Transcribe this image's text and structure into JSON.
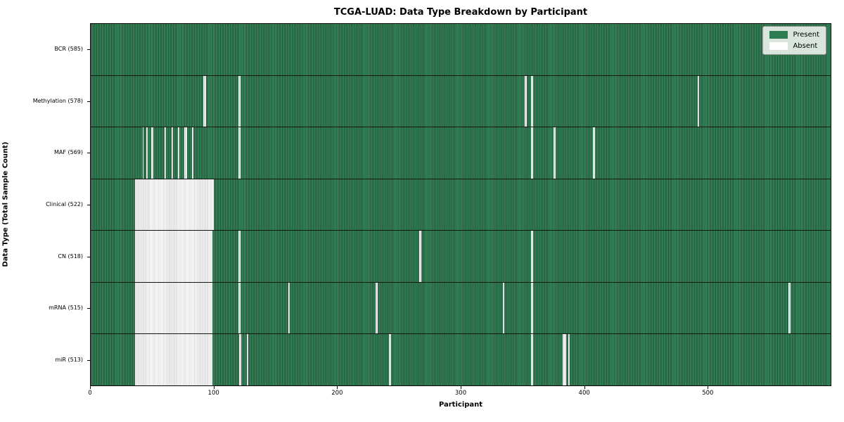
{
  "title": "TCGA-LUAD: Data Type Breakdown by Participant",
  "colors": {
    "present": "#2e7d52",
    "present_light": "#38855c",
    "present_dark": "#205536",
    "absent": "#ffffff",
    "absent_stripe": "#c9c9c9",
    "legend_bg": "#ecf1ec"
  },
  "legend": {
    "present_label": "Present",
    "absent_label": "Absent"
  },
  "chart_data": {
    "type": "heatmap",
    "title": "TCGA-LUAD: Data Type Breakdown by Participant",
    "xlabel": "Participant",
    "ylabel": "Data Type (Total Sample Count)",
    "xlim": [
      0,
      600
    ],
    "x_ticks": [
      0,
      100,
      200,
      300,
      400,
      500
    ],
    "grid": false,
    "legend_position": "upper right",
    "legend_entries": [
      {
        "label": "Present",
        "color": "#2e7d52"
      },
      {
        "label": "Absent",
        "color": "#ffffff"
      }
    ],
    "rows": [
      {
        "label": "BCR (585)",
        "data_type": "BCR",
        "total_sample_count": 585,
        "absent_ranges": []
      },
      {
        "label": "Methylation (578)",
        "data_type": "Methylation",
        "total_sample_count": 578,
        "absent_ranges": [
          [
            91.5,
            93.5
          ],
          [
            120,
            121.5
          ],
          [
            352,
            353.5
          ],
          [
            357,
            358.5
          ],
          [
            492,
            493.5
          ]
        ]
      },
      {
        "label": "MAF (569)",
        "data_type": "MAF",
        "total_sample_count": 569,
        "absent_ranges": [
          [
            42,
            43
          ],
          [
            45,
            46
          ],
          [
            49,
            50.5
          ],
          [
            60,
            61
          ],
          [
            65.5,
            67
          ],
          [
            70.5,
            72
          ],
          [
            76,
            78
          ],
          [
            82,
            83.5
          ],
          [
            120,
            121.5
          ],
          [
            357,
            358.5
          ],
          [
            375.5,
            377
          ],
          [
            407.5,
            409
          ]
        ]
      },
      {
        "label": "Clinical (522)",
        "data_type": "Clinical",
        "total_sample_count": 522,
        "absent_ranges": [
          [
            36,
            100
          ]
        ]
      },
      {
        "label": "CN (518)",
        "data_type": "CN",
        "total_sample_count": 518,
        "absent_ranges": [
          [
            36,
            98.5
          ],
          [
            120,
            121.5
          ],
          [
            266.5,
            268
          ],
          [
            357,
            358.5
          ]
        ]
      },
      {
        "label": "mRNA (515)",
        "data_type": "mRNA",
        "total_sample_count": 515,
        "absent_ranges": [
          [
            36,
            98.5
          ],
          [
            120,
            121.5
          ],
          [
            160,
            161.5
          ],
          [
            231,
            232.5
          ],
          [
            334,
            335.5
          ],
          [
            357,
            358.5
          ],
          [
            566,
            567.5
          ]
        ]
      },
      {
        "label": "miR (513)",
        "data_type": "miR",
        "total_sample_count": 513,
        "absent_ranges": [
          [
            36,
            98.5
          ],
          [
            120.5,
            122
          ],
          [
            126.5,
            128
          ],
          [
            242,
            243.5
          ],
          [
            357,
            358.5
          ],
          [
            382.5,
            385.5
          ],
          [
            387,
            388.5
          ]
        ]
      }
    ]
  }
}
